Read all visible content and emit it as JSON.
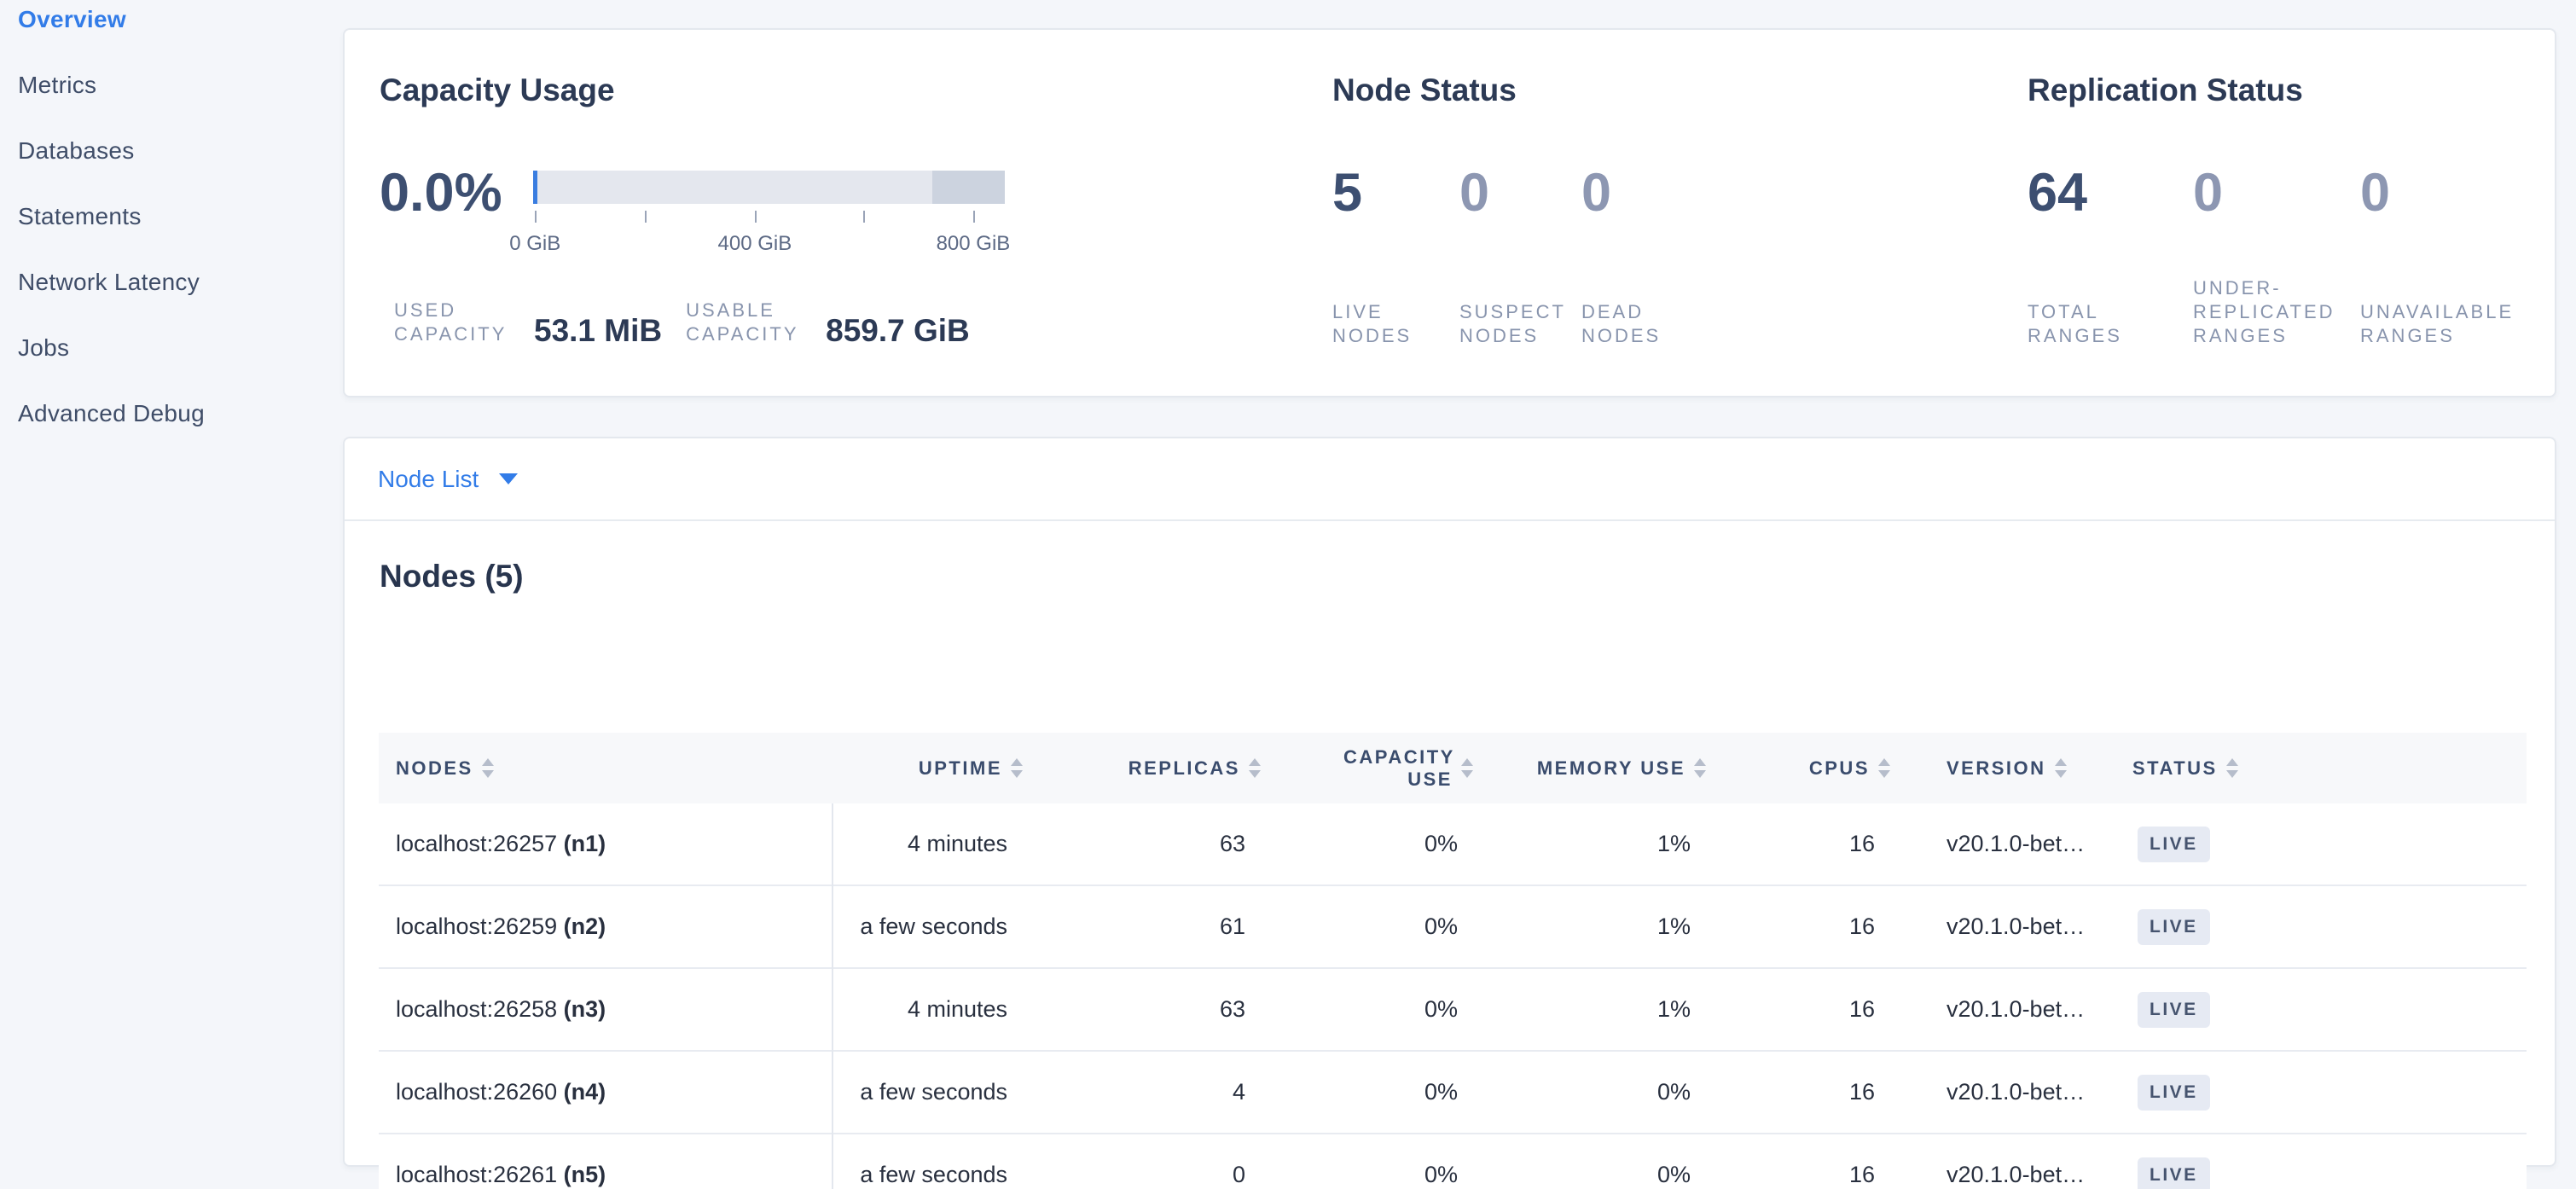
{
  "sidebar": {
    "items": [
      {
        "label": "Overview",
        "active": true
      },
      {
        "label": "Metrics",
        "active": false
      },
      {
        "label": "Databases",
        "active": false
      },
      {
        "label": "Statements",
        "active": false
      },
      {
        "label": "Network Latency",
        "active": false
      },
      {
        "label": "Jobs",
        "active": false
      },
      {
        "label": "Advanced Debug",
        "active": false
      }
    ]
  },
  "summary": {
    "capacity": {
      "title": "Capacity Usage",
      "percent": "0.0%",
      "bar": {
        "ticks": [
          {
            "pos": 0.4,
            "label": "0 GiB"
          },
          {
            "pos": 23.7,
            "label": ""
          },
          {
            "pos": 47.0,
            "label": "400 GiB"
          },
          {
            "pos": 70.0,
            "label": ""
          },
          {
            "pos": 93.3,
            "label": "800 GiB"
          }
        ],
        "used_width_pct": 0.9,
        "reserved_width_pct": 15.4,
        "track_color": "#e4e7ee",
        "reserved_color": "#ccd3df",
        "used_color": "#3a7de0"
      },
      "stats": [
        {
          "label": "USED CAPACITY",
          "value": "53.1 MiB"
        },
        {
          "label": "USABLE CAPACITY",
          "value": "859.7 GiB"
        }
      ]
    },
    "node_status": {
      "title": "Node Status",
      "stats": [
        {
          "value": "5",
          "label": "LIVE NODES",
          "emphasized": true
        },
        {
          "value": "0",
          "label": "SUSPECT NODES",
          "emphasized": false
        },
        {
          "value": "0",
          "label": "DEAD NODES",
          "emphasized": false
        }
      ]
    },
    "replication": {
      "title": "Replication Status",
      "stats": [
        {
          "value": "64",
          "label": "TOTAL RANGES",
          "emphasized": true
        },
        {
          "value": "0",
          "label": "UNDER-REPLICATED RANGES",
          "emphasized": false
        },
        {
          "value": "0",
          "label": "UNAVAILABLE RANGES",
          "emphasized": false
        }
      ]
    }
  },
  "node_list": {
    "view_label": "Node List",
    "table_title": "Nodes (5)",
    "columns": [
      "NODES",
      "UPTIME",
      "REPLICAS",
      "CAPACITY USE",
      "MEMORY USE",
      "CPUS",
      "VERSION",
      "STATUS"
    ],
    "rows": [
      {
        "address": "localhost:26257",
        "node_id": "(n1)",
        "uptime": "4 minutes",
        "replicas": "63",
        "capacity_use": "0%",
        "memory_use": "1%",
        "cpus": "16",
        "version": "v20.1.0-bet…",
        "status": "LIVE"
      },
      {
        "address": "localhost:26259",
        "node_id": "(n2)",
        "uptime": "a few seconds",
        "replicas": "61",
        "capacity_use": "0%",
        "memory_use": "1%",
        "cpus": "16",
        "version": "v20.1.0-bet…",
        "status": "LIVE"
      },
      {
        "address": "localhost:26258",
        "node_id": "(n3)",
        "uptime": "4 minutes",
        "replicas": "63",
        "capacity_use": "0%",
        "memory_use": "1%",
        "cpus": "16",
        "version": "v20.1.0-bet…",
        "status": "LIVE"
      },
      {
        "address": "localhost:26260",
        "node_id": "(n4)",
        "uptime": "a few seconds",
        "replicas": "4",
        "capacity_use": "0%",
        "memory_use": "0%",
        "cpus": "16",
        "version": "v20.1.0-bet…",
        "status": "LIVE"
      },
      {
        "address": "localhost:26261",
        "node_id": "(n5)",
        "uptime": "a few seconds",
        "replicas": "0",
        "capacity_use": "0%",
        "memory_use": "0%",
        "cpus": "16",
        "version": "v20.1.0-bet…",
        "status": "LIVE"
      }
    ]
  },
  "colors": {
    "accent_blue": "#327ce8",
    "page_background": "#f4f6fa",
    "card_border": "#e4e8ee",
    "title_text": "#2c3a55",
    "muted_stat": "#8d97b2",
    "caps_label": "#8894ad",
    "badge_background": "#e6eaf3",
    "badge_text": "#46546f",
    "table_header_background": "#f7f8fa",
    "row_divider": "#e8ebf1"
  }
}
